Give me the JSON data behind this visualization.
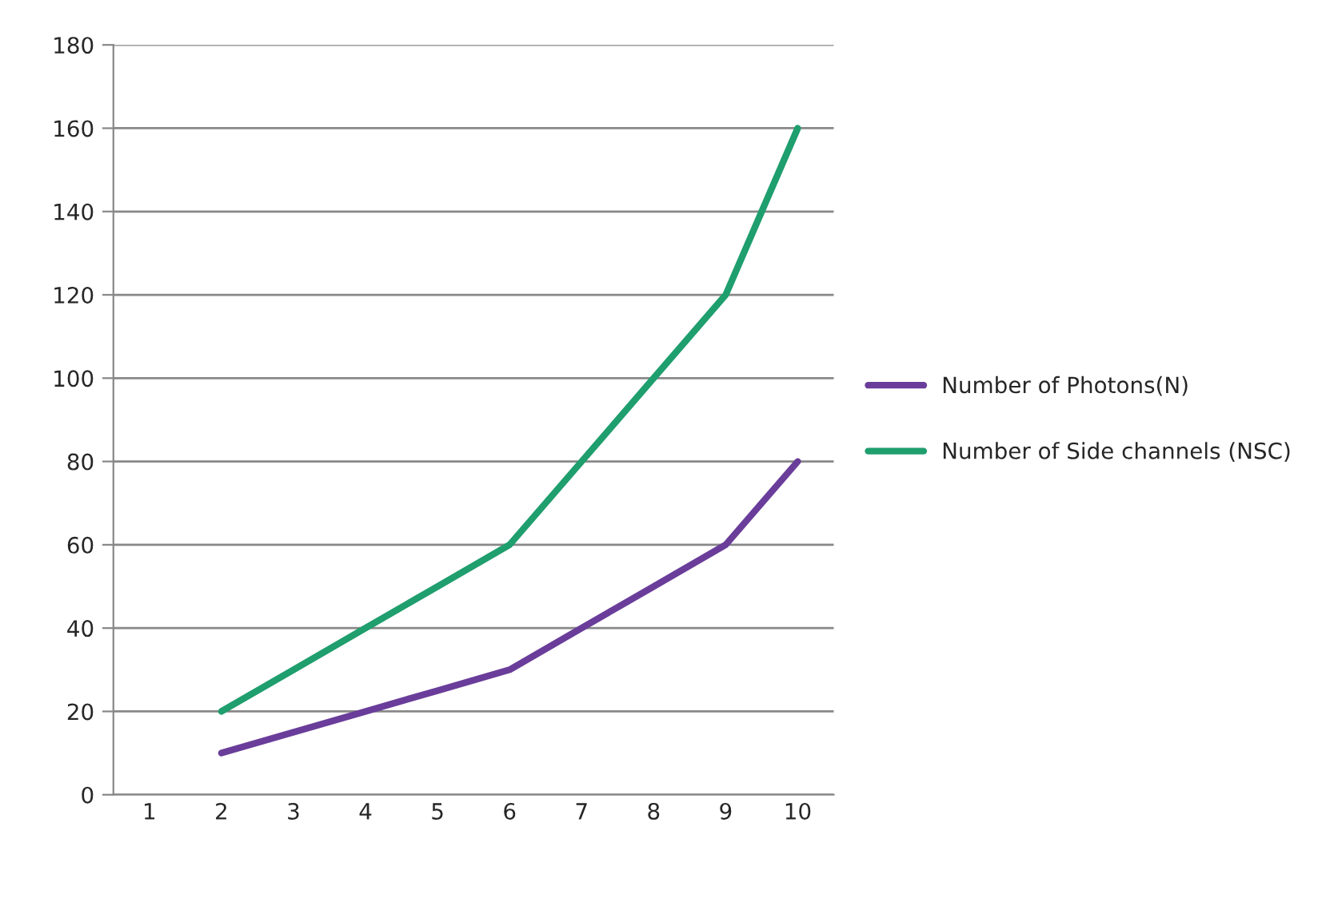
{
  "chart_data": {
    "type": "line",
    "categories": [
      "1",
      "2",
      "3",
      "4",
      "5",
      "6",
      "7",
      "8",
      "9",
      "10"
    ],
    "series": [
      {
        "name": "Number of Photons(N)",
        "color": "#6a3d9a",
        "values": [
          null,
          10,
          15,
          20,
          25,
          30,
          40,
          50,
          60,
          80
        ]
      },
      {
        "name": "Number of Side channels (NSC)",
        "color": "#1f9e6e",
        "values": [
          null,
          20,
          30,
          40,
          50,
          60,
          80,
          100,
          120,
          160
        ]
      }
    ],
    "ylim": [
      0,
      180
    ],
    "yticks": [
      0,
      20,
      40,
      60,
      80,
      100,
      120,
      140,
      160,
      180
    ],
    "grid": "y",
    "legend": "right",
    "marker": "none",
    "line_style": "solid"
  }
}
